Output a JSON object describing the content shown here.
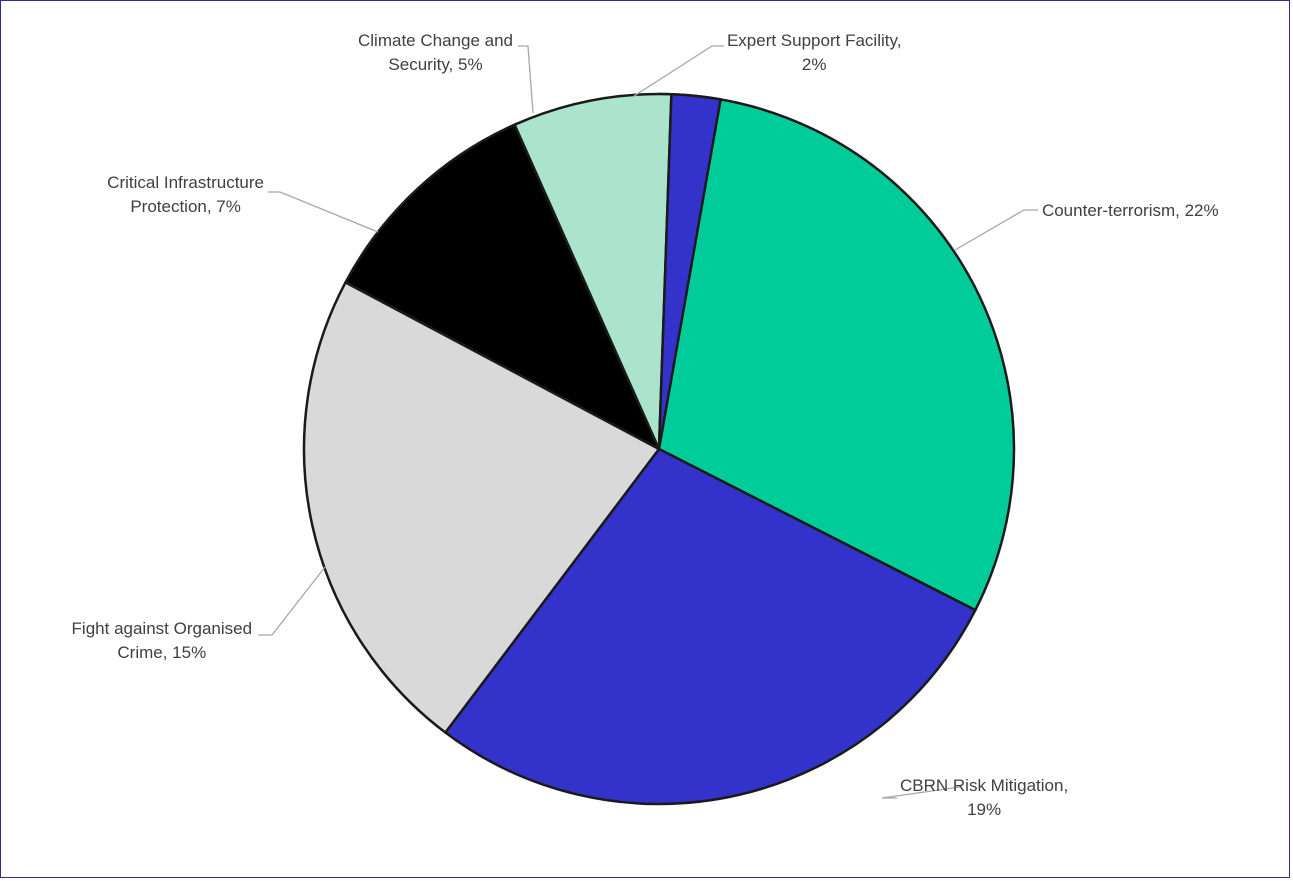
{
  "chart_data": {
    "type": "pie",
    "title": "",
    "start_angle_deg": 0,
    "direction": "clockwise",
    "slices": [
      {
        "name": "Counter-terrorism",
        "value": 22,
        "sweep_deg": 117,
        "color": "#00cc99",
        "label_lines": [
          "Counter-terrorism, 22%"
        ]
      },
      {
        "name": "CBRN Risk Mitigation",
        "value": 19,
        "sweep_deg": 100,
        "color": "#3333cc",
        "label_lines": [
          "CBRN Risk Mitigation,",
          "19%"
        ]
      },
      {
        "name": "Fight against Organised Crime",
        "value": 15,
        "sweep_deg": 81,
        "color": "#d9d9d9",
        "label_lines": [
          "Fight against Organised",
          "Crime, 15%"
        ]
      },
      {
        "name": "Critical Infrastructure Protection",
        "value": 7,
        "sweep_deg": 38,
        "color": "#000000",
        "label_lines": [
          "Critical Infrastructure",
          "Protection, 7%"
        ]
      },
      {
        "name": "Climate Change and Security",
        "value": 5,
        "sweep_deg": 26,
        "color": "#abe3cc",
        "label_lines": [
          "Climate Change and",
          "Security, 5%"
        ]
      },
      {
        "name": "Expert Support Facility",
        "value": 2,
        "sweep_deg": 8,
        "color": "#3333cc",
        "label_lines": [
          "Expert Support Facility,",
          "2%"
        ]
      }
    ],
    "legend": "none",
    "data_labels": "outside with leader lines"
  }
}
